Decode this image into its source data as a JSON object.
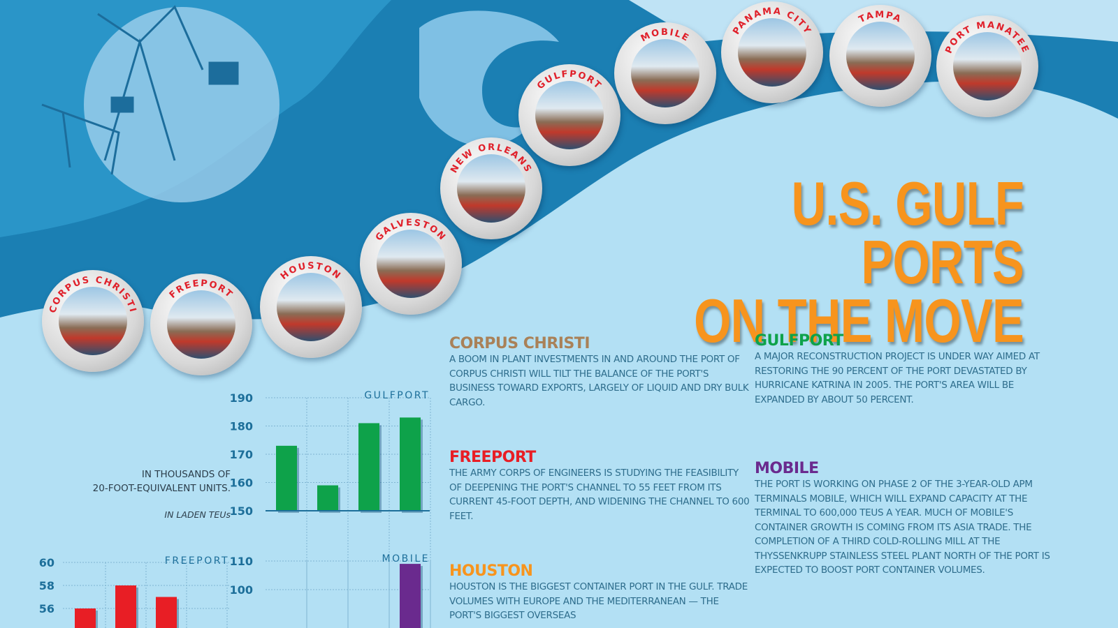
{
  "title": {
    "line1": "U.S. GULF PORTS",
    "line2": "ON THE MOVE"
  },
  "colors": {
    "background": "#b3e0f4",
    "wave": "#1b7fb3",
    "title": "#f7941d",
    "gulfport": "#0ea24a",
    "freeport": "#e81e25",
    "mobile": "#6a2a8e",
    "corpus_christi": "#a98158",
    "houston": "#f7941d"
  },
  "ports": [
    "CORPUS CHRISTI",
    "FREEPORT",
    "HOUSTON",
    "GALVESTON",
    "NEW ORLEANS",
    "GULFPORT",
    "MOBILE",
    "PANAMA CITY",
    "TAMPA",
    "PORT MANATEE"
  ],
  "units": {
    "line1": "IN THOUSANDS OF",
    "line2": "20-FOOT-EQUIVALENT UNITS.",
    "note": "IN LADEN TEUs"
  },
  "sections": [
    {
      "title": "CORPUS CHRISTI",
      "text": "A BOOM IN PLANT INVESTMENTS IN AND AROUND THE PORT OF CORPUS CHRISTI WILL TILT THE BALANCE OF THE PORT'S BUSINESS TOWARD EXPORTS, LARGELY OF LIQUID AND DRY BULK CARGO."
    },
    {
      "title": "FREEPORT",
      "text": "THE ARMY CORPS OF ENGINEERS IS STUDYING THE FEASIBILITY OF DEEPENING THE PORT'S CHANNEL TO 55 FEET FROM ITS CURRENT 45-FOOT DEPTH, AND WIDENING THE CHANNEL TO 600 FEET."
    },
    {
      "title": "HOUSTON",
      "text": "HOUSTON IS THE BIGGEST CONTAINER PORT IN THE GULF. TRADE VOLUMES WITH EUROPE AND THE MEDITERRANEAN — THE PORT'S BIGGEST OVERSEAS"
    },
    {
      "title": "GULFPORT",
      "text": "A MAJOR RECONSTRUCTION PROJECT IS UNDER WAY AIMED AT RESTORING THE 90 PERCENT OF THE PORT DEVASTATED BY HURRICANE KATRINA IN 2005. THE PORT'S AREA WILL BE EXPANDED BY ABOUT 50 PERCENT."
    },
    {
      "title": "MOBILE",
      "text": "THE PORT IS WORKING ON PHASE 2 OF THE 3-YEAR-OLD APM TERMINALS MOBILE, WHICH WILL EXPAND CAPACITY AT THE TERMINAL TO 600,000 TEUS A YEAR. MUCH OF MOBILE'S CONTAINER GROWTH IS COMING FROM ITS ASIA TRADE. THE COMPLETION OF A THIRD COLD-ROLLING MILL AT THE THYSSENKRUPP STAINLESS STEEL PLANT NORTH OF THE PORT IS EXPECTED TO BOOST PORT CONTAINER VOLUMES."
    }
  ],
  "chart_data": [
    {
      "type": "bar",
      "title": "GULFPORT",
      "values": [
        173,
        159,
        181,
        183
      ],
      "yticks": [
        150,
        160,
        170,
        180,
        190
      ],
      "ylim": [
        150,
        190
      ],
      "grid": true,
      "color": "#0ea24a"
    },
    {
      "type": "bar",
      "title": "FREEPORT",
      "values": [
        56,
        58,
        57
      ],
      "yticks": [
        56,
        58,
        60
      ],
      "ylim": [
        null,
        60
      ],
      "grid": true,
      "color": "#e81e25"
    },
    {
      "type": "bar",
      "title": "MOBILE",
      "values": [
        null,
        null,
        null,
        109
      ],
      "yticks": [
        100,
        110
      ],
      "ylim": [
        null,
        110
      ],
      "grid": true,
      "color": "#6a2a8e"
    }
  ]
}
